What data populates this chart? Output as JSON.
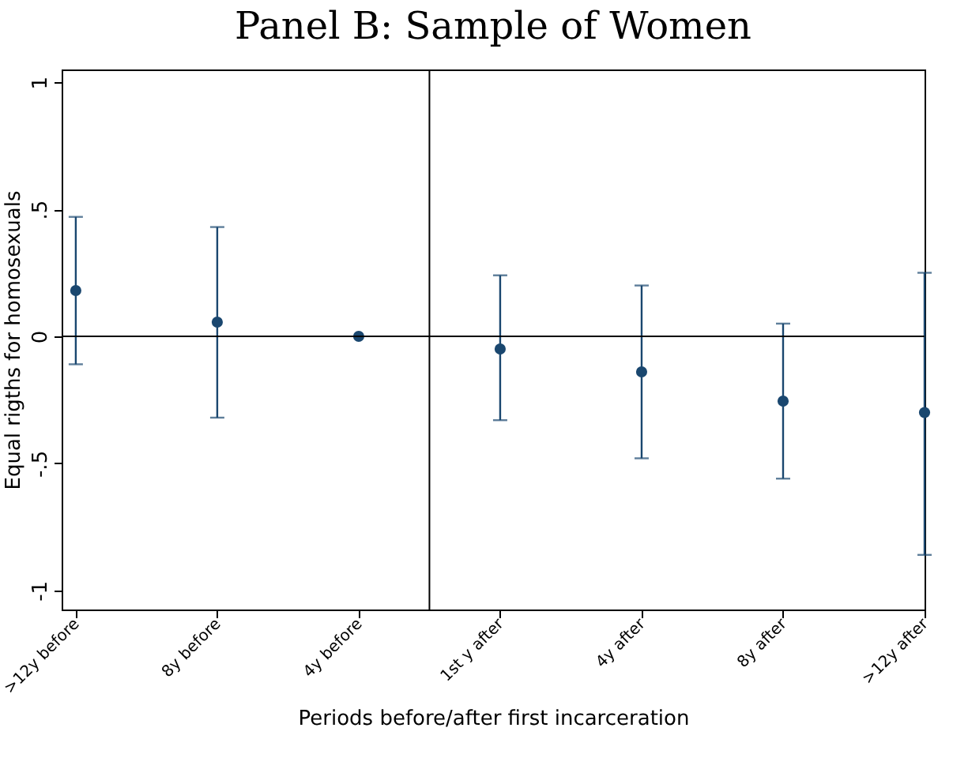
{
  "chart_data": {
    "type": "scatter",
    "title": "Panel B: Sample of Women",
    "xlabel": "Periods before/after first incarceration",
    "ylabel": "Equal rigths for homosexuals",
    "categories": [
      ">12y before",
      "8y before",
      "4y before",
      "1st y after",
      "4y after",
      "8y after",
      ">12y after"
    ],
    "ylim": [
      -1.075,
      1.05
    ],
    "yticks": [
      1,
      {
        "value": 0.5,
        "label": ".5"
      },
      0,
      {
        "value": -0.5,
        "label": "-.5"
      },
      -1
    ],
    "series": [
      {
        "color": "#1a476f",
        "values": [
          0.18,
          0.056,
          0,
          -0.05,
          -0.14,
          -0.255,
          -0.3
        ],
        "errors": [
          [
            -0.11,
            0.47
          ],
          [
            -0.32,
            0.43
          ],
          null,
          [
            -0.33,
            0.24
          ],
          [
            -0.48,
            0.2
          ],
          [
            -0.56,
            0.05
          ],
          [
            -0.86,
            0.25
          ]
        ]
      }
    ],
    "ref_lines": [
      {
        "axis": "y",
        "value": 0,
        "color": "#000000"
      },
      {
        "axis": "x",
        "value": "1st y after",
        "color": "#000000"
      }
    ],
    "marker": "circle"
  }
}
